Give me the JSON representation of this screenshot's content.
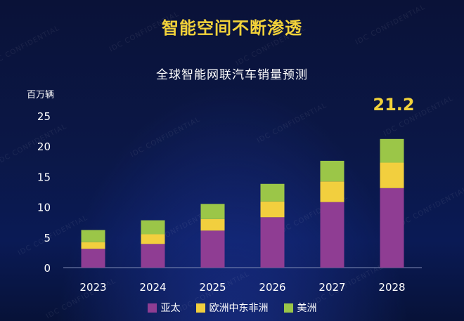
{
  "main_title": "智能空间不断渗透",
  "watermark_text": "IDC CONFIDENTIAL",
  "chart_data": {
    "type": "bar",
    "stacked": true,
    "title": "全球智能网联汽车销量预测",
    "ylabel": "百万辆",
    "xlabel": "",
    "ylim": [
      0,
      25
    ],
    "yticks": [
      0,
      5,
      10,
      15,
      20,
      25
    ],
    "categories": [
      "2023",
      "2024",
      "2025",
      "2026",
      "2027",
      "2028"
    ],
    "series": [
      {
        "name": "亚太",
        "color": "#8f3d93",
        "values": [
          3.1,
          3.9,
          6.1,
          8.3,
          10.8,
          13.1
        ]
      },
      {
        "name": "欧洲中东非洲",
        "color": "#f2cf3e",
        "values": [
          1.1,
          1.6,
          1.9,
          2.6,
          3.4,
          4.2
        ]
      },
      {
        "name": "美洲",
        "color": "#9bc648",
        "values": [
          2.0,
          2.3,
          2.5,
          2.9,
          3.4,
          3.9
        ]
      }
    ],
    "annotations": [
      {
        "category": "2028",
        "text": "21.2"
      }
    ],
    "grid": false,
    "legend_position": "bottom"
  }
}
